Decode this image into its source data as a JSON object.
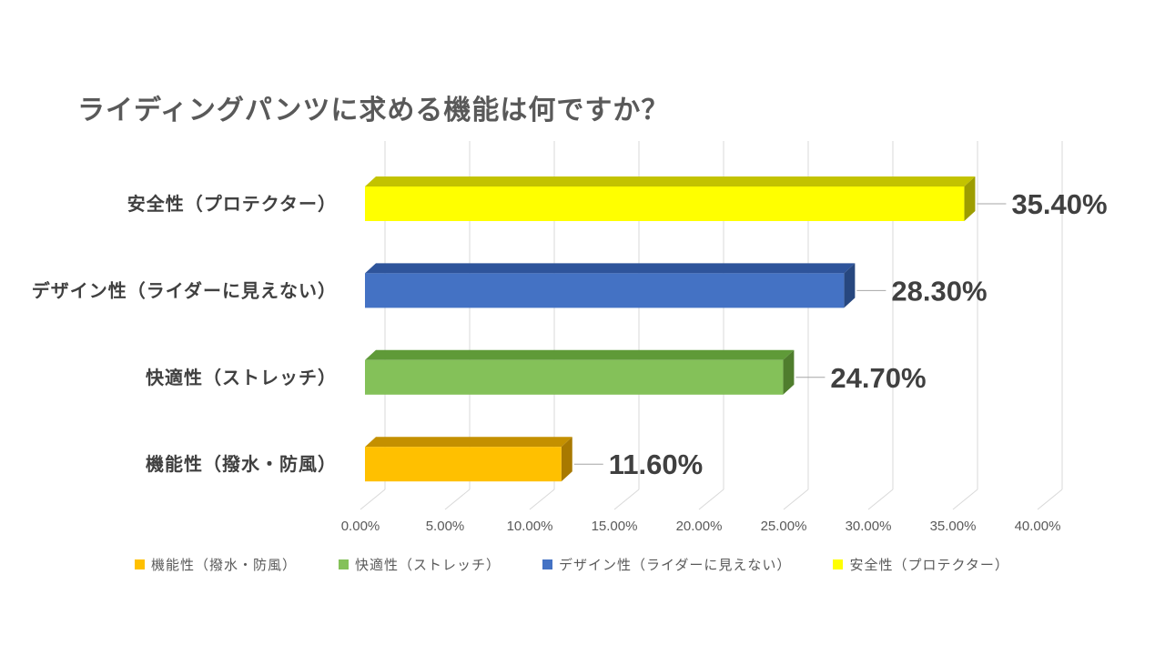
{
  "title": "ライディングパンツに求める機能は何ですか？",
  "chart_data": {
    "type": "bar",
    "orientation": "horizontal",
    "style": "3d",
    "title": "ライディングパンツに求める機能は何ですか？",
    "categories": [
      "安全性（プロテクター）",
      "デザイン性（ライダーに見えない）",
      "快適性（ストレッチ）",
      "機能性（撥水・防風）"
    ],
    "values": [
      35.4,
      28.3,
      24.7,
      11.6
    ],
    "value_labels": [
      "35.40%",
      "28.30%",
      "24.70%",
      "11.60%"
    ],
    "bar_colors": [
      {
        "front": "#ffff00",
        "top": "#c3c300",
        "side": "#9d9d00"
      },
      {
        "front": "#4472c4",
        "top": "#2e549b",
        "side": "#27477f"
      },
      {
        "front": "#84c159",
        "top": "#5f9a38",
        "side": "#4f7d2d"
      },
      {
        "front": "#ffc000",
        "top": "#c49000",
        "side": "#a87900"
      }
    ],
    "xlabel": "",
    "ylabel": "",
    "xlim": [
      0,
      40
    ],
    "x_ticks": [
      "0.00%",
      "5.00%",
      "10.00%",
      "15.00%",
      "20.00%",
      "25.00%",
      "30.00%",
      "35.00%",
      "40.00%"
    ],
    "grid": true,
    "legend": {
      "position": "bottom",
      "items": [
        {
          "label": "機能性（撥水・防風）",
          "color": "#ffc000"
        },
        {
          "label": "快適性（ストレッチ）",
          "color": "#84c159"
        },
        {
          "label": "デザイン性（ライダーに見えない）",
          "color": "#4472c4"
        },
        {
          "label": "安全性（プロテクター）",
          "color": "#ffff00"
        }
      ]
    },
    "colors": {
      "title_text": "#595959",
      "category_text": "#404040",
      "data_label_text": "#404040",
      "tick_text": "#595959",
      "gridline": "#d9d9d9",
      "leader_line": "#a6a6a6"
    }
  }
}
